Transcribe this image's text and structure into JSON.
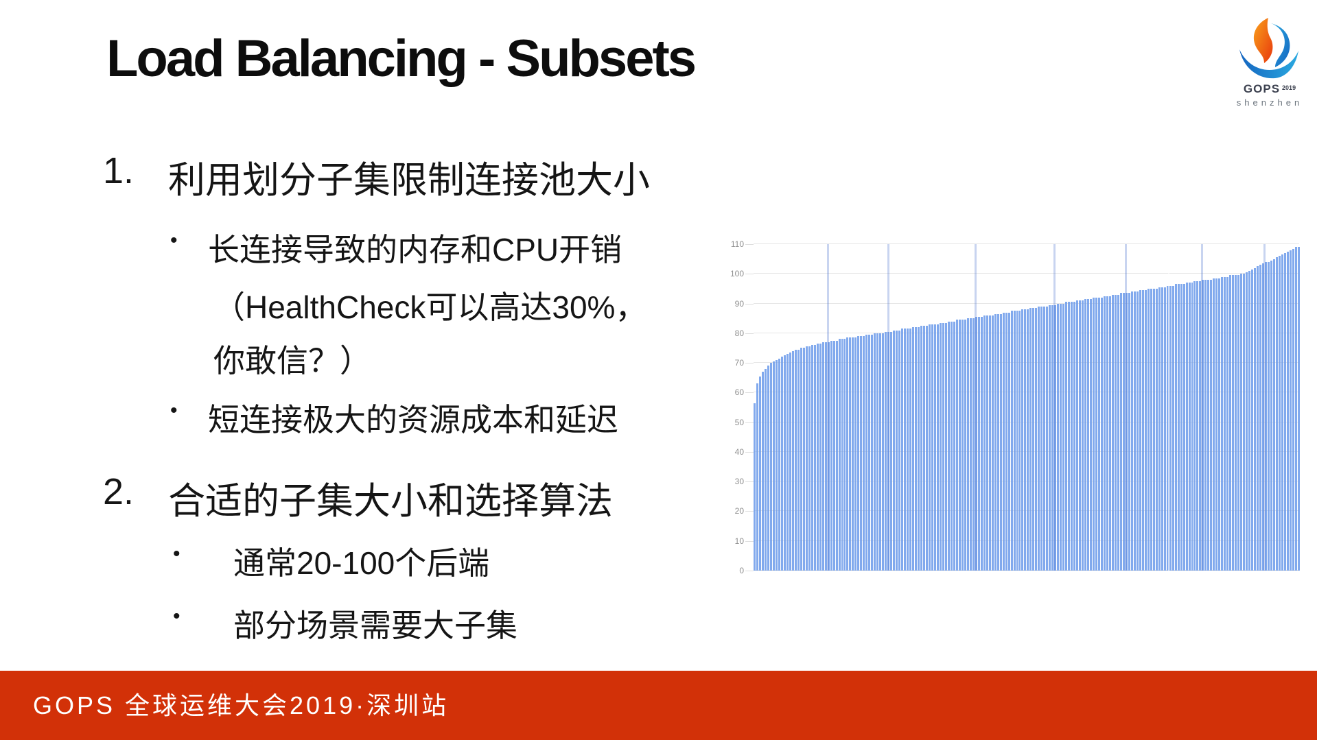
{
  "slide": {
    "title": "Load Balancing - Subsets",
    "bullet_glyph": "•",
    "list": {
      "item1_number": "1.",
      "item1_text": "利用划分子集限制连接池大小",
      "item1_bullet1_line1": "长连接导致的内存和CPU开销",
      "item1_bullet1_line2": "（HealthCheck可以高达30%，",
      "item1_bullet1_line3": "你敢信？）",
      "item1_bullet2": "短连接极大的资源成本和延迟",
      "item2_number": "2.",
      "item2_text": "合适的子集大小和选择算法",
      "item2_bullet1": "通常20-100个后端",
      "item2_bullet2": "部分场景需要大子集"
    }
  },
  "logo": {
    "title": "GOPS",
    "year": "2019",
    "city": "shenzhen",
    "orange": "#f7941e",
    "deep_orange": "#e8380d",
    "light_blue": "#2aa9e0",
    "deep_blue": "#1565c0"
  },
  "footer": {
    "text": "GOPS 全球运维大会2019·深圳站",
    "background": "#d23108"
  },
  "chart_data": {
    "type": "bar",
    "title": "",
    "xlabel": "",
    "ylabel": "",
    "ylim": [
      0,
      110
    ],
    "yticks": [
      0,
      10,
      20,
      30,
      40,
      50,
      60,
      70,
      80,
      90,
      100,
      110
    ],
    "grid": true,
    "legend": "none",
    "bar_color": "#6f9deb",
    "values": [
      56.5,
      63,
      65.5,
      67,
      68,
      69,
      70,
      70.5,
      71,
      71.5,
      72,
      72.5,
      73,
      73.5,
      74,
      74.5,
      74.5,
      75,
      75,
      75.5,
      75.5,
      76,
      76,
      76.5,
      76.5,
      77,
      77,
      77,
      77.5,
      77.5,
      77.5,
      78,
      78,
      78,
      78.5,
      78.5,
      78.5,
      78.5,
      79,
      79,
      79,
      79.5,
      79.5,
      79.5,
      80,
      80,
      80,
      80,
      80.5,
      80.5,
      80.5,
      81,
      81,
      81,
      81.5,
      81.5,
      81.5,
      81.5,
      82,
      82,
      82,
      82.5,
      82.5,
      82.5,
      83,
      83,
      83,
      83,
      83.5,
      83.5,
      83.5,
      84,
      84,
      84,
      84.5,
      84.5,
      84.5,
      84.5,
      85,
      85,
      85,
      85.5,
      85.5,
      85.5,
      86,
      86,
      86,
      86,
      86.5,
      86.5,
      86.5,
      87,
      87,
      87,
      87.5,
      87.5,
      87.5,
      87.5,
      88,
      88,
      88,
      88.5,
      88.5,
      88.5,
      89,
      89,
      89,
      89,
      89.5,
      89.5,
      89.5,
      90,
      90,
      90,
      90.5,
      90.5,
      90.5,
      90.5,
      91,
      91,
      91,
      91.5,
      91.5,
      91.5,
      92,
      92,
      92,
      92,
      92.5,
      92.5,
      92.5,
      93,
      93,
      93,
      93.5,
      93.5,
      93.5,
      93.5,
      94,
      94,
      94,
      94.5,
      94.5,
      94.5,
      95,
      95,
      95,
      95,
      95.5,
      95.5,
      95.5,
      96,
      96,
      96,
      96.5,
      96.5,
      96.5,
      96.5,
      97,
      97,
      97,
      97.5,
      97.5,
      97.5,
      98,
      98,
      98,
      98,
      98.5,
      98.5,
      98.5,
      99,
      99,
      99,
      99.5,
      99.5,
      99.5,
      99.5,
      100,
      100,
      100.5,
      101,
      101.5,
      102,
      102.5,
      103,
      103.5,
      104,
      104,
      104.5,
      105,
      105.5,
      106,
      106.5,
      107,
      107.5,
      108,
      108.5,
      109,
      109
    ]
  }
}
